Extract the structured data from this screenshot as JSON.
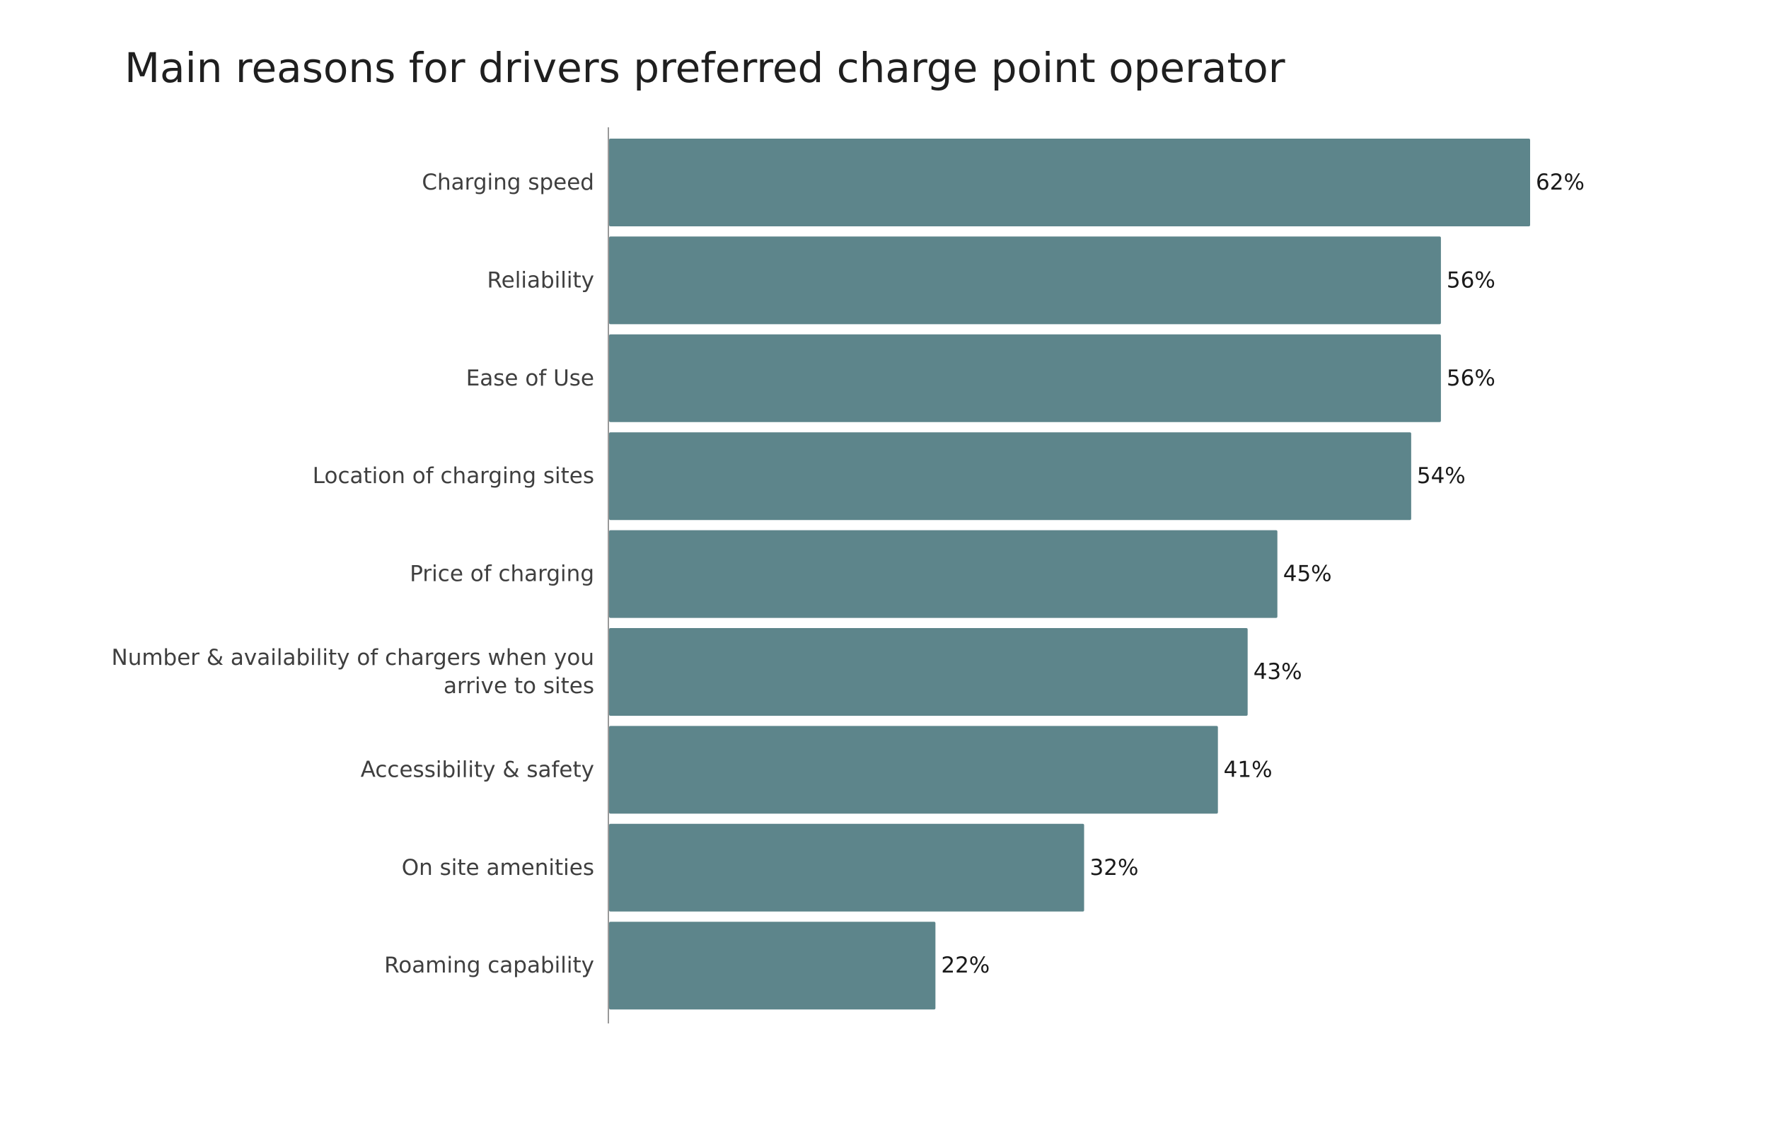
{
  "chart_data": {
    "type": "bar",
    "orientation": "horizontal",
    "title": "Main reasons for drivers preferred charge point operator",
    "categories": [
      [
        "Charging speed"
      ],
      [
        "Reliability"
      ],
      [
        "Ease of Use"
      ],
      [
        "Location of charging sites"
      ],
      [
        "Price of charging"
      ],
      [
        "Number & availability of chargers when you",
        "arrive to sites"
      ],
      [
        "Accessibility & safety"
      ],
      [
        "On site amenities"
      ],
      [
        "Roaming capability"
      ]
    ],
    "values": [
      62,
      56,
      56,
      54,
      45,
      43,
      41,
      32,
      22
    ],
    "value_labels": [
      "62%",
      "56%",
      "56%",
      "54%",
      "45%",
      "43%",
      "41%",
      "32%",
      "22%"
    ],
    "xlim": [
      0,
      62
    ],
    "grid": false,
    "legend": "none",
    "colors": {
      "bar": "#5d858b",
      "axis": "#999999",
      "category_text": "#3f3f3f",
      "value_text": "#1a1a1a"
    }
  }
}
